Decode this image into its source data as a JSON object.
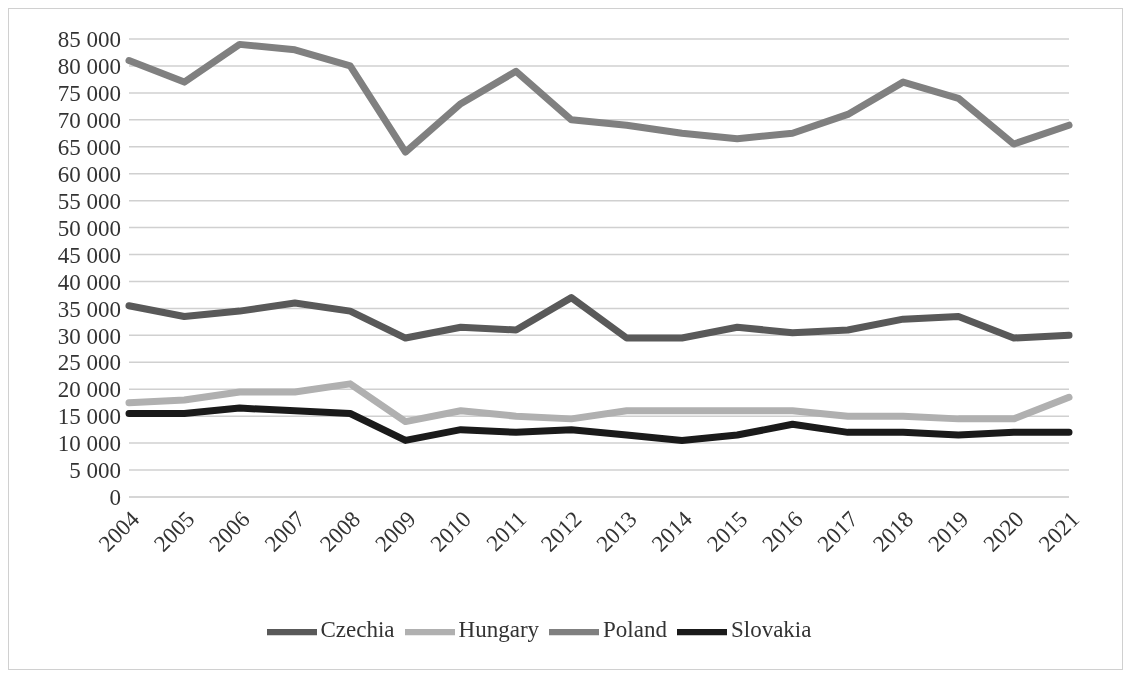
{
  "chart_data": {
    "type": "line",
    "categories": [
      "2004",
      "2005",
      "2006",
      "2007",
      "2008",
      "2009",
      "2010",
      "2011",
      "2012",
      "2013",
      "2014",
      "2015",
      "2016",
      "2017",
      "2018",
      "2019",
      "2020",
      "2021"
    ],
    "series": [
      {
        "name": "Czechia",
        "color": "#595959",
        "values": [
          35500,
          33500,
          34500,
          36000,
          34500,
          29500,
          31500,
          31000,
          37000,
          29500,
          29500,
          31500,
          30500,
          31000,
          33000,
          33500,
          29500,
          30000
        ]
      },
      {
        "name": "Hungary",
        "color": "#b0b0b0",
        "values": [
          17500,
          18000,
          19500,
          19500,
          21000,
          14000,
          16000,
          15000,
          14500,
          16000,
          16000,
          16000,
          16000,
          15000,
          15000,
          14500,
          14500,
          18500
        ]
      },
      {
        "name": "Poland",
        "color": "#808080",
        "values": [
          81000,
          77000,
          84000,
          83000,
          80000,
          64000,
          73000,
          79000,
          70000,
          69000,
          67500,
          66500,
          67500,
          71000,
          77000,
          74000,
          65500,
          69000
        ]
      },
      {
        "name": "Slovakia",
        "color": "#1a1a1a",
        "values": [
          15500,
          15500,
          16500,
          16000,
          15500,
          10500,
          12500,
          12000,
          12500,
          11500,
          10500,
          11500,
          13500,
          12000,
          12000,
          11500,
          12000,
          12000
        ]
      }
    ],
    "ylim": [
      0,
      85000
    ],
    "yticks": [
      {
        "value": 0,
        "label": "0"
      },
      {
        "value": 5000,
        "label": "5 000"
      },
      {
        "value": 10000,
        "label": "10 000"
      },
      {
        "value": 15000,
        "label": "15 000"
      },
      {
        "value": 20000,
        "label": "20 000"
      },
      {
        "value": 25000,
        "label": "25 000"
      },
      {
        "value": 30000,
        "label": "30 000"
      },
      {
        "value": 35000,
        "label": "35 000"
      },
      {
        "value": 40000,
        "label": "40 000"
      },
      {
        "value": 45000,
        "label": "45 000"
      },
      {
        "value": 50000,
        "label": "50 000"
      },
      {
        "value": 55000,
        "label": "55 000"
      },
      {
        "value": 60000,
        "label": "60 000"
      },
      {
        "value": 65000,
        "label": "65 000"
      },
      {
        "value": 70000,
        "label": "70 000"
      },
      {
        "value": 75000,
        "label": "75 000"
      },
      {
        "value": 80000,
        "label": "80 000"
      },
      {
        "value": 85000,
        "label": "85 000"
      }
    ],
    "grid": "y",
    "legend": "bottom",
    "marker": "none",
    "line_style": "solid"
  }
}
